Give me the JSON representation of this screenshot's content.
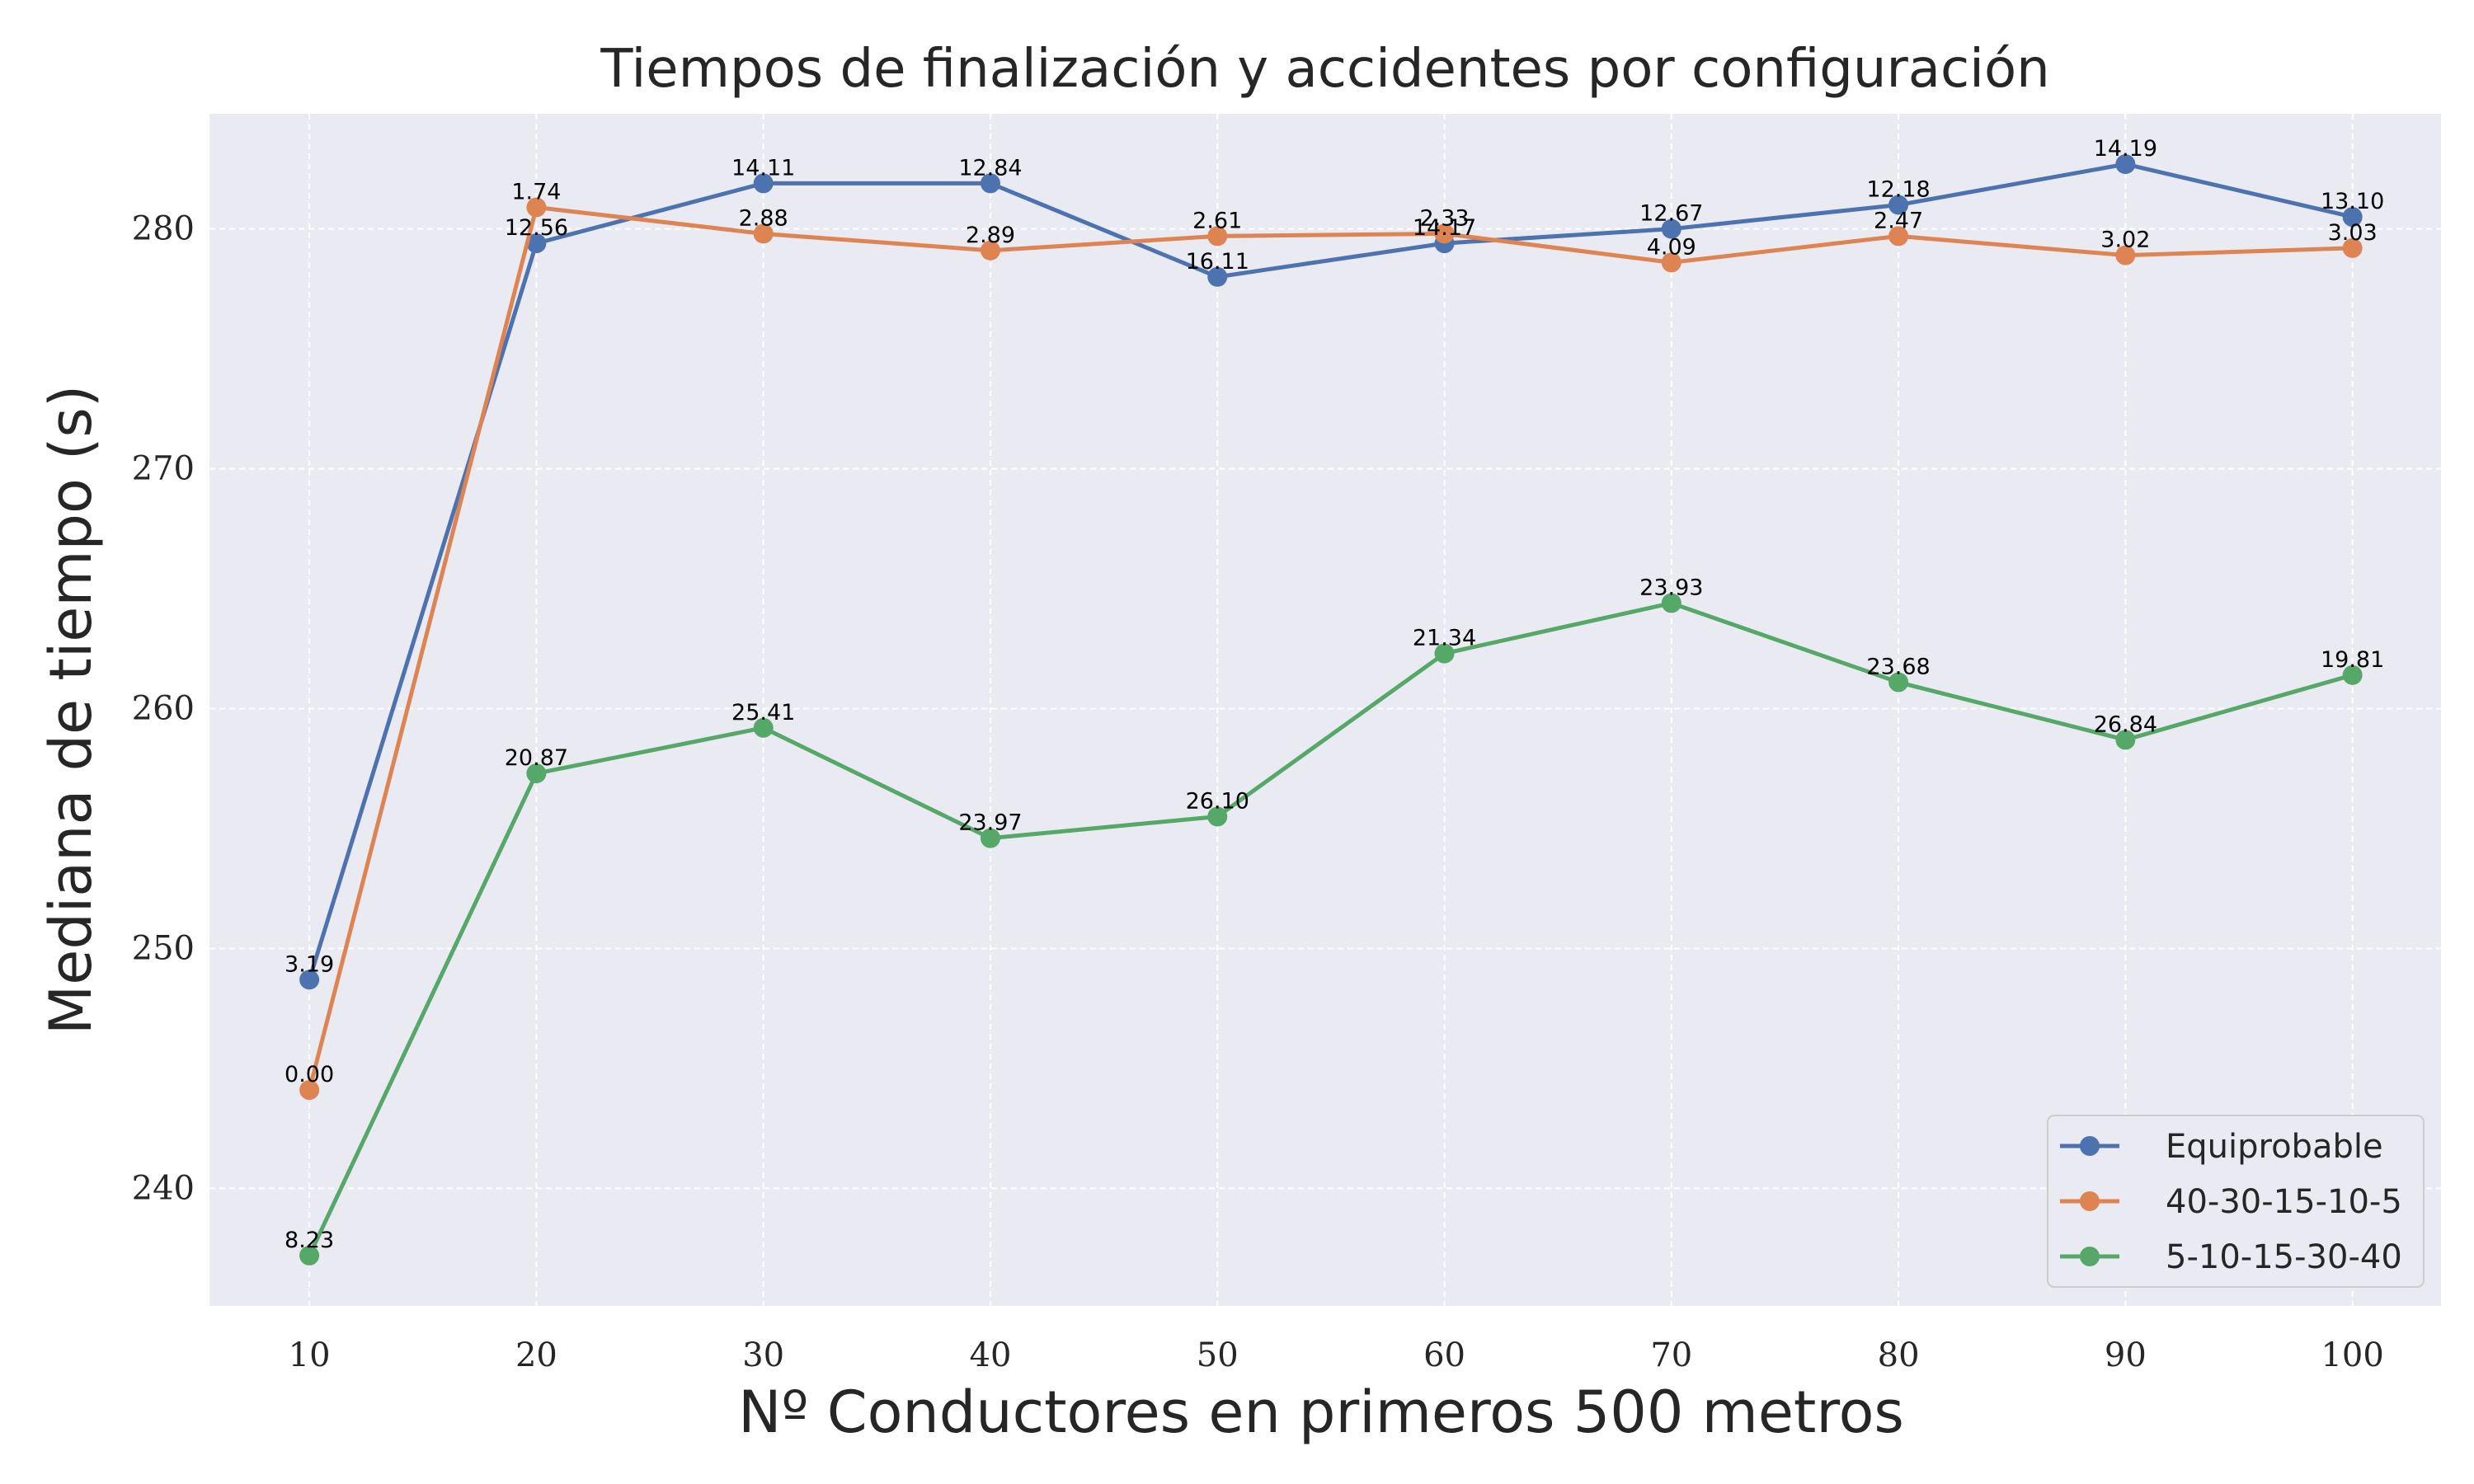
{
  "chart_data": {
    "type": "line",
    "title": "Tiempos de finalización y accidentes por configuración",
    "xlabel": "Nº Conductores en primeros 500 metros",
    "ylabel": "Mediana de tiempo (s)",
    "x": [
      10,
      20,
      30,
      40,
      50,
      60,
      70,
      80,
      90,
      100
    ],
    "xticks": [
      "10",
      "20",
      "30",
      "40",
      "50",
      "60",
      "70",
      "80",
      "90",
      "100"
    ],
    "yticks": [
      240,
      250,
      260,
      270,
      280
    ],
    "xlim": [
      5.6,
      103.9
    ],
    "ylim": [
      235.1,
      284.8
    ],
    "grid": true,
    "legend_position": "lower right",
    "series": [
      {
        "name": "Equiprobable",
        "color": "#4c72b0",
        "values": [
          248.7,
          279.4,
          281.9,
          281.9,
          278.0,
          279.4,
          280.0,
          281.0,
          282.7,
          280.5
        ],
        "labels": [
          "3.19",
          "12.56",
          "14.11",
          "12.84",
          "16.11",
          "14.17",
          "12.67",
          "12.18",
          "14.19",
          "13.10"
        ]
      },
      {
        "name": "40-30-15-10-5",
        "color": "#dd8452",
        "values": [
          244.1,
          280.9,
          279.8,
          279.1,
          279.7,
          279.8,
          278.6,
          279.7,
          278.9,
          279.2
        ],
        "labels": [
          "0.00",
          "1.74",
          "2.88",
          "2.89",
          "2.61",
          "2.33",
          "4.09",
          "2.47",
          "3.02",
          "3.03"
        ]
      },
      {
        "name": "5-10-15-30-40",
        "color": "#55a868",
        "values": [
          237.2,
          257.3,
          259.2,
          254.6,
          255.5,
          262.3,
          264.4,
          261.1,
          258.7,
          261.4
        ],
        "labels": [
          "8.23",
          "20.87",
          "25.41",
          "23.97",
          "26.10",
          "21.34",
          "23.93",
          "23.68",
          "26.84",
          "19.81"
        ]
      }
    ]
  }
}
